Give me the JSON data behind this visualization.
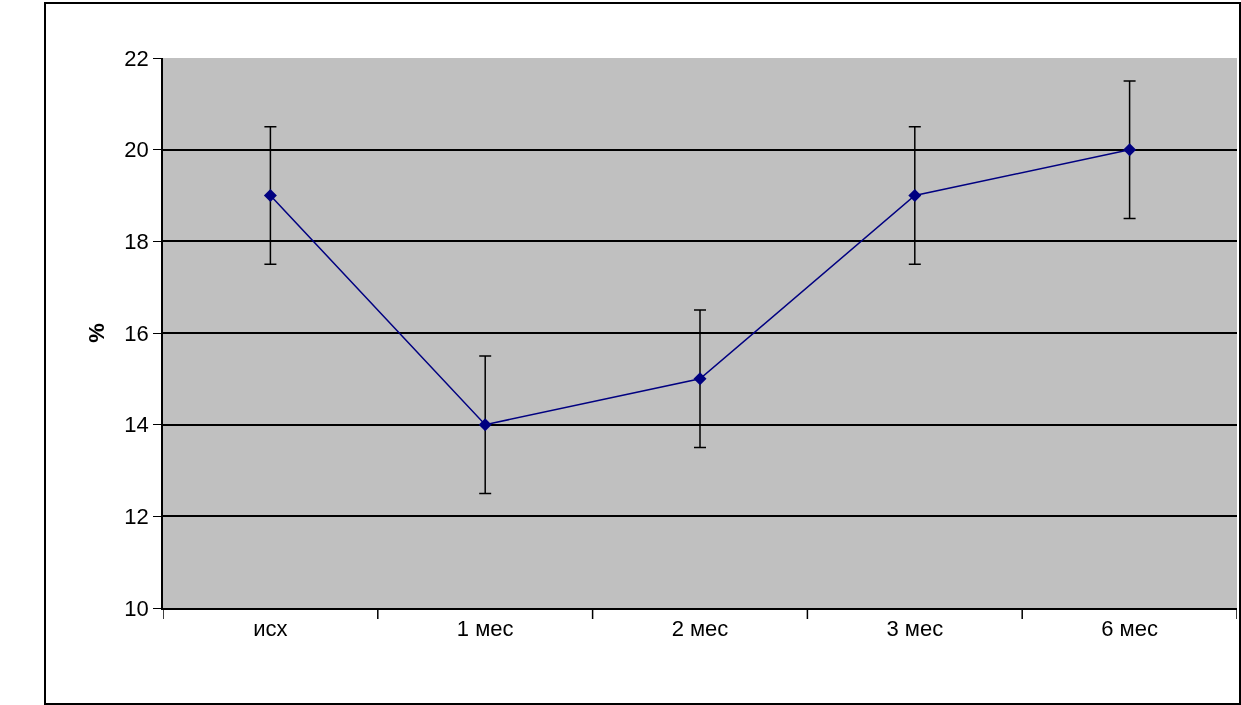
{
  "chart_data": {
    "type": "line",
    "ylabel": "%",
    "categories": [
      "исх",
      "1 мес",
      "2 мес",
      "3 мес",
      "6 мес"
    ],
    "series": [
      {
        "color": "#000080",
        "values": [
          19,
          14,
          15,
          19,
          20
        ],
        "errors": [
          1.5,
          1.5,
          1.5,
          1.5,
          1.5
        ]
      }
    ],
    "ylim": [
      10,
      22
    ],
    "yticks": [
      10,
      12,
      14,
      16,
      18,
      20,
      22
    ],
    "grid": "y",
    "marker": "diamond",
    "line_style": "solid"
  }
}
